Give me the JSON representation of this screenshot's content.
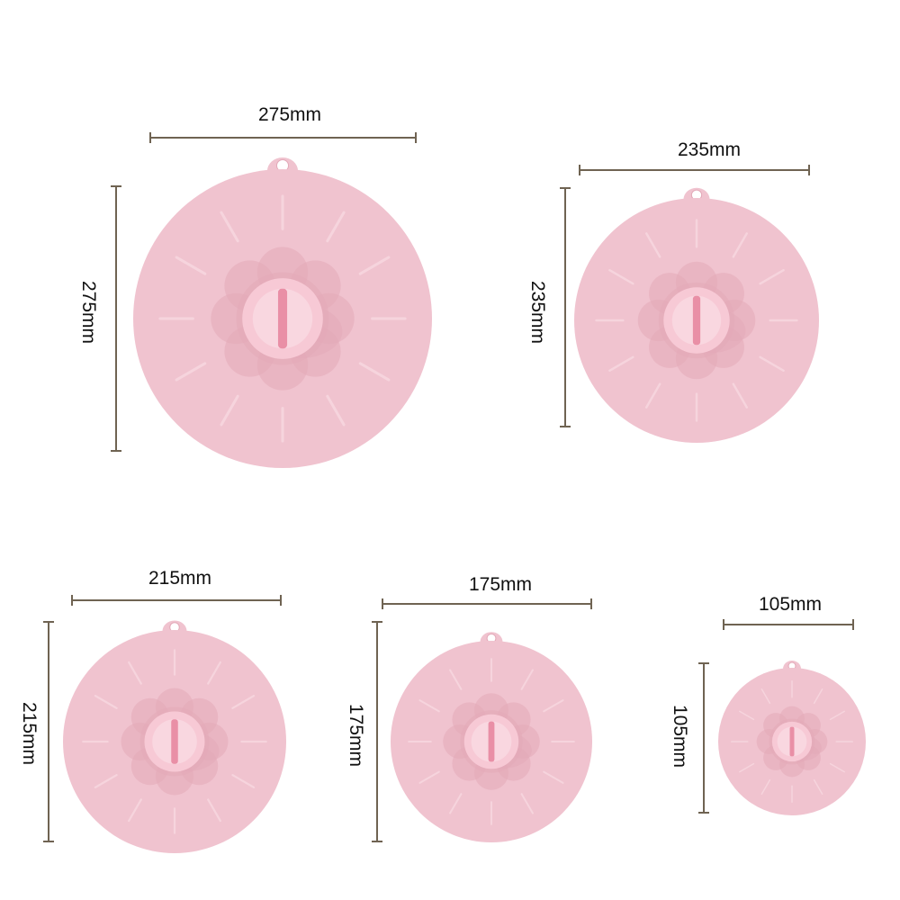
{
  "colors": {
    "lid": "#f0c3cf",
    "lid_light": "#f6d4dd",
    "lid_dark": "#e3a9b8",
    "knob": "#f7c9d5",
    "knob_slot": "#e98fa6",
    "dimension_line": "#6f6352"
  },
  "lids": [
    {
      "name": "lid-275",
      "width_label": "275mm",
      "height_label": "275mm"
    },
    {
      "name": "lid-235",
      "width_label": "235mm",
      "height_label": "235mm"
    },
    {
      "name": "lid-215",
      "width_label": "215mm",
      "height_label": "215mm"
    },
    {
      "name": "lid-175",
      "width_label": "175mm",
      "height_label": "175mm"
    },
    {
      "name": "lid-105",
      "width_label": "105mm",
      "height_label": "105mm"
    }
  ]
}
